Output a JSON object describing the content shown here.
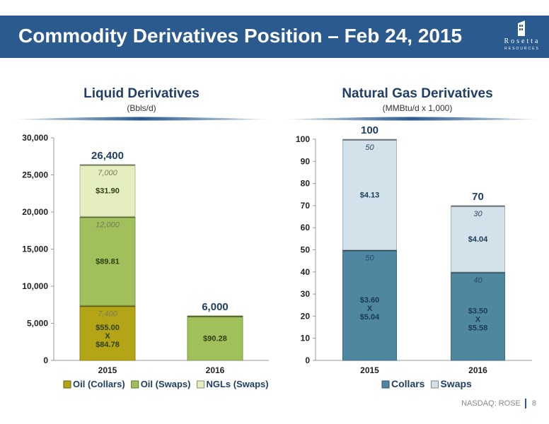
{
  "header": {
    "title": "Commodity Derivatives Position – Feb 24, 2015"
  },
  "logo": {
    "name": "Rosetta",
    "sub": "RESOURCES"
  },
  "footer": {
    "ticker": "NASDAQ: ROSE",
    "page": "8"
  },
  "colors": {
    "header_bg": "#2a5a8e",
    "oil_collars": "#b3a516",
    "oil_swaps": "#9fc05a",
    "ngl_swaps": "#e4eebf",
    "gas_collars": "#4f86a0",
    "gas_swaps": "#d3e1ea"
  },
  "chart_data": [
    {
      "type": "bar",
      "stacked": true,
      "title": "Liquid Derivatives",
      "subtitle": "(Bbls/d)",
      "categories": [
        "2015",
        "2016"
      ],
      "ylim": [
        0,
        30000
      ],
      "yticks": [
        "0",
        "5,000",
        "10,000",
        "15,000",
        "20,000",
        "25,000",
        "30,000"
      ],
      "totals": [
        "26,400",
        "6,000"
      ],
      "legend_position": "bottom",
      "series": [
        {
          "name": "Oil (Collars)",
          "color": "#b3a516",
          "values": [
            7400,
            0
          ],
          "volume_labels": [
            "7,400",
            ""
          ],
          "price_labels": [
            [
              "$55.00",
              "X",
              "$84.78"
            ],
            []
          ]
        },
        {
          "name": "Oil (Swaps)",
          "color": "#9fc05a",
          "values": [
            12000,
            6000
          ],
          "volume_labels": [
            "12,000",
            ""
          ],
          "price_labels": [
            [
              "$89.81"
            ],
            [
              "$90.28"
            ]
          ]
        },
        {
          "name": "NGLs (Swaps)",
          "color": "#e4eebf",
          "values": [
            7000,
            0
          ],
          "volume_labels": [
            "7,000",
            ""
          ],
          "price_labels": [
            [
              "$31.90"
            ],
            []
          ]
        }
      ]
    },
    {
      "type": "bar",
      "stacked": true,
      "title": "Natural Gas Derivatives",
      "subtitle": "(MMBtu/d x 1,000)",
      "categories": [
        "2015",
        "2016"
      ],
      "ylim": [
        0,
        100
      ],
      "yticks": [
        "0",
        "10",
        "20",
        "30",
        "40",
        "50",
        "60",
        "70",
        "80",
        "90",
        "100"
      ],
      "totals": [
        "100",
        "70"
      ],
      "legend_position": "bottom",
      "series": [
        {
          "name": "Collars",
          "color": "#4f86a0",
          "values": [
            50,
            40
          ],
          "volume_labels": [
            "50",
            "40"
          ],
          "price_labels": [
            [
              "$3.60",
              "X",
              "$5.04"
            ],
            [
              "$3.50",
              "X",
              "$5.58"
            ]
          ]
        },
        {
          "name": "Swaps",
          "color": "#d3e1ea",
          "values": [
            50,
            30
          ],
          "volume_labels": [
            "50",
            "30"
          ],
          "price_labels": [
            [
              "$4.13"
            ],
            [
              "$4.04"
            ]
          ]
        }
      ]
    }
  ]
}
